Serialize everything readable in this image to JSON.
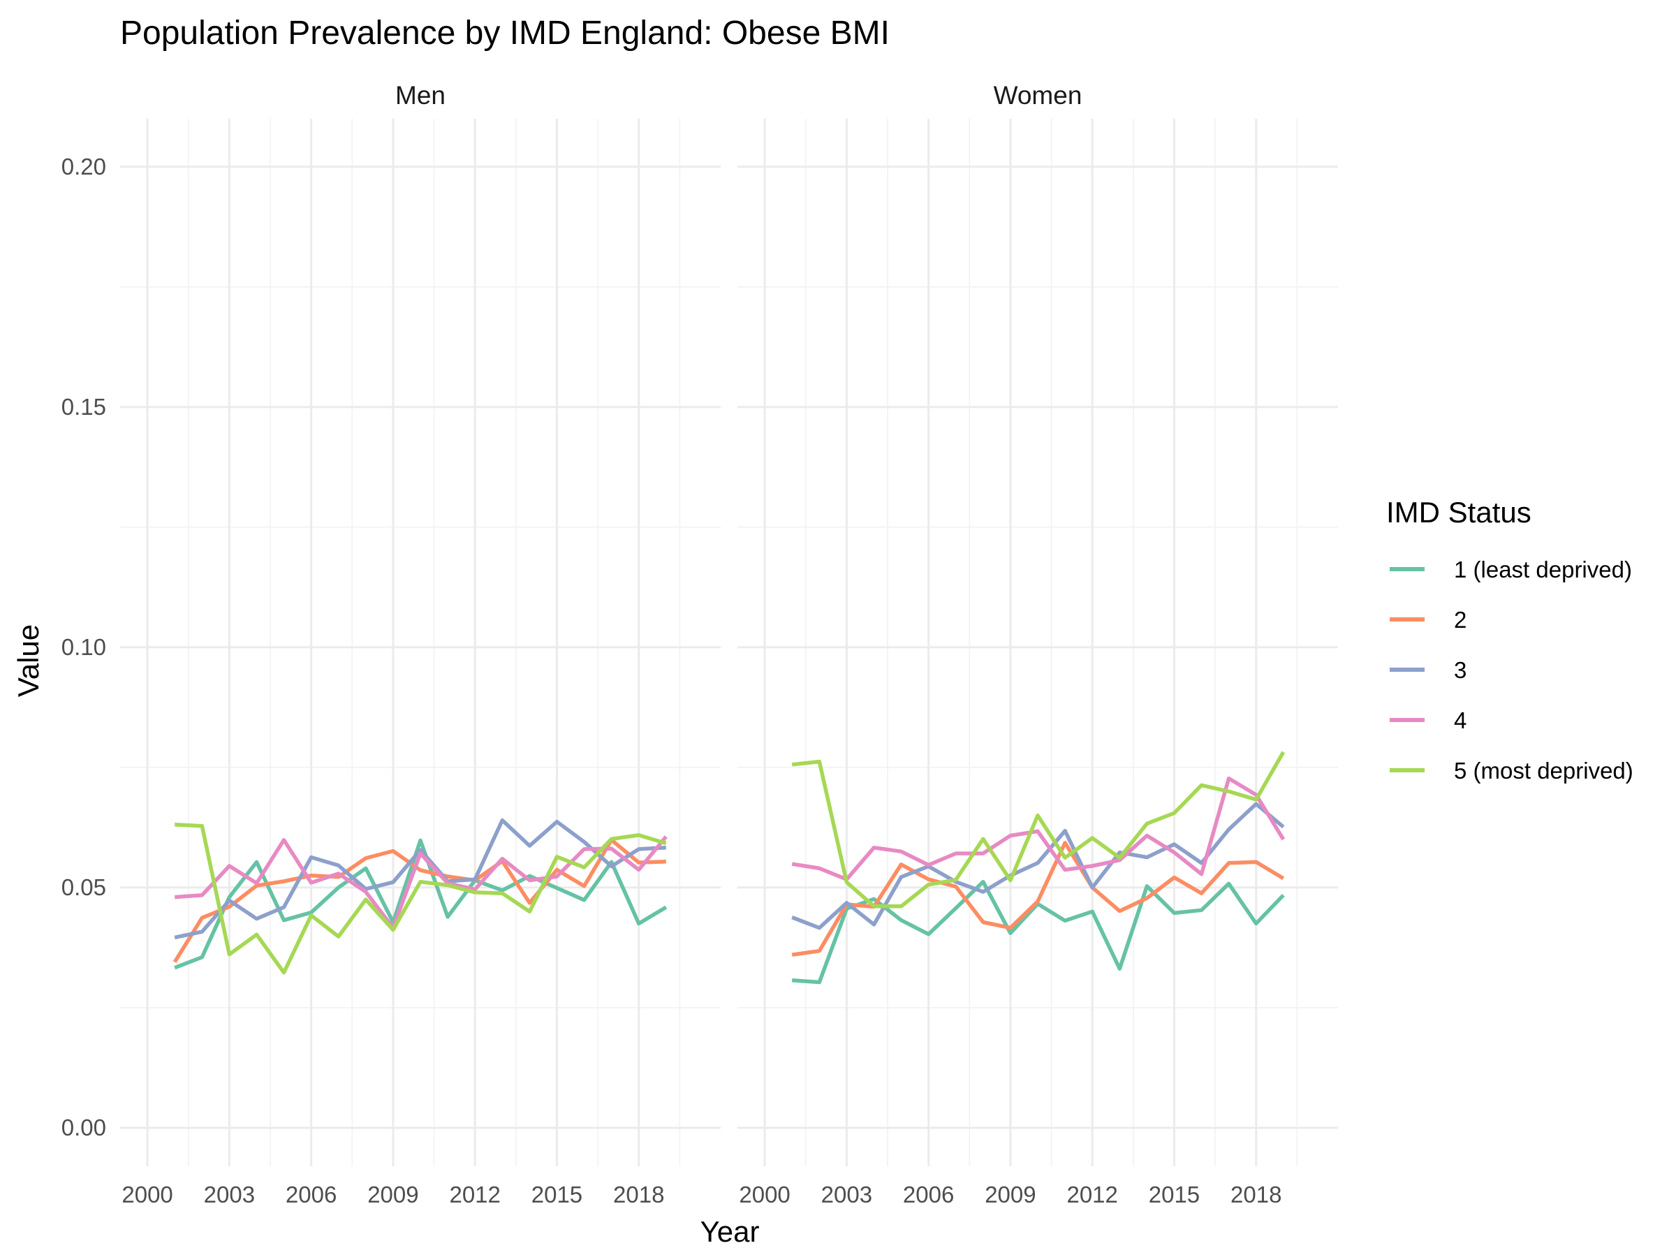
{
  "chart_data": {
    "type": "line",
    "title": "Population Prevalence by IMD England: Obese BMI",
    "xlabel": "Year",
    "ylabel": "Value",
    "xlim": [
      1999,
      2021
    ],
    "ylim": [
      -0.008,
      0.21
    ],
    "x_ticks": [
      2000,
      2003,
      2006,
      2009,
      2012,
      2015,
      2018
    ],
    "x_tick_labels": [
      "2000",
      "2003",
      "2006",
      "2009",
      "2012",
      "2015",
      "2018"
    ],
    "y_ticks": [
      0.0,
      0.05,
      0.1,
      0.15,
      0.2
    ],
    "y_tick_labels": [
      "0.00",
      "0.05",
      "0.10",
      "0.15",
      "0.20"
    ],
    "grid": true,
    "legend": {
      "title": "IMD Status",
      "position": "right",
      "entries": [
        {
          "label": "1 (least deprived)",
          "color": "#66c2a5"
        },
        {
          "label": "2",
          "color": "#fc8d62"
        },
        {
          "label": "3",
          "color": "#8da0cb"
        },
        {
          "label": "4",
          "color": "#e78ac3"
        },
        {
          "label": "5 (most deprived)",
          "color": "#a6d854"
        }
      ]
    },
    "x": [
      2001,
      2002,
      2003,
      2004,
      2005,
      2006,
      2007,
      2008,
      2009,
      2010,
      2011,
      2012,
      2013,
      2014,
      2015,
      2016,
      2017,
      2018,
      2019
    ],
    "panels": [
      {
        "strip": "Men",
        "series": [
          {
            "legend_index": 0,
            "values": [
              0.0333,
              0.0355,
              0.048,
              0.0553,
              0.0432,
              0.0448,
              0.05,
              0.054,
              0.0428,
              0.0598,
              0.0439,
              0.0515,
              0.0494,
              0.0524,
              0.0499,
              0.0474,
              0.0553,
              0.0425,
              0.0459
            ]
          },
          {
            "legend_index": 1,
            "values": [
              0.0345,
              0.0437,
              0.046,
              0.0504,
              0.0513,
              0.0525,
              0.0522,
              0.0561,
              0.0576,
              0.0536,
              0.0523,
              0.0515,
              0.0555,
              0.0468,
              0.0537,
              0.0503,
              0.0599,
              0.0552,
              0.0554
            ]
          },
          {
            "legend_index": 2,
            "values": [
              0.0396,
              0.0408,
              0.0473,
              0.0435,
              0.0459,
              0.0563,
              0.0546,
              0.0497,
              0.0511,
              0.0578,
              0.0513,
              0.0517,
              0.064,
              0.0587,
              0.0637,
              0.0595,
              0.0544,
              0.058,
              0.0583
            ]
          },
          {
            "legend_index": 3,
            "values": [
              0.048,
              0.0484,
              0.0545,
              0.0509,
              0.0599,
              0.051,
              0.0529,
              0.0491,
              0.0416,
              0.0571,
              0.0509,
              0.0496,
              0.056,
              0.0515,
              0.0523,
              0.058,
              0.0581,
              0.0537,
              0.0606
            ]
          },
          {
            "legend_index": 4,
            "values": [
              0.0631,
              0.0628,
              0.0361,
              0.0402,
              0.0323,
              0.0442,
              0.0398,
              0.0475,
              0.0412,
              0.0512,
              0.0505,
              0.049,
              0.0488,
              0.045,
              0.0564,
              0.0542,
              0.0601,
              0.0609,
              0.0592
            ]
          }
        ]
      },
      {
        "strip": "Women",
        "series": [
          {
            "legend_index": 0,
            "values": [
              0.0307,
              0.0303,
              0.0456,
              0.0476,
              0.0432,
              0.0403,
              0.0457,
              0.0512,
              0.0405,
              0.0466,
              0.0431,
              0.045,
              0.0331,
              0.0503,
              0.0447,
              0.0453,
              0.0508,
              0.0425,
              0.0484
            ]
          },
          {
            "legend_index": 1,
            "values": [
              0.036,
              0.0368,
              0.0465,
              0.046,
              0.0548,
              0.0517,
              0.0502,
              0.0428,
              0.0416,
              0.0471,
              0.0593,
              0.05,
              0.0451,
              0.0478,
              0.0521,
              0.0488,
              0.0551,
              0.0553,
              0.0519
            ]
          },
          {
            "legend_index": 2,
            "values": [
              0.0438,
              0.0416,
              0.0468,
              0.0423,
              0.0522,
              0.0544,
              0.0512,
              0.0491,
              0.0525,
              0.0551,
              0.0618,
              0.05,
              0.0573,
              0.0563,
              0.059,
              0.0551,
              0.0621,
              0.0674,
              0.0626
            ]
          },
          {
            "legend_index": 3,
            "values": [
              0.0549,
              0.054,
              0.0517,
              0.0583,
              0.0575,
              0.0547,
              0.0571,
              0.0571,
              0.0608,
              0.0617,
              0.0537,
              0.0545,
              0.0557,
              0.0608,
              0.0573,
              0.0528,
              0.0727,
              0.0693,
              0.06
            ]
          },
          {
            "legend_index": 4,
            "values": [
              0.0756,
              0.0762,
              0.0511,
              0.0461,
              0.0461,
              0.0506,
              0.0516,
              0.0601,
              0.0515,
              0.065,
              0.0562,
              0.0603,
              0.0562,
              0.0633,
              0.0655,
              0.0713,
              0.07,
              0.0683,
              0.0782
            ]
          }
        ]
      }
    ]
  }
}
